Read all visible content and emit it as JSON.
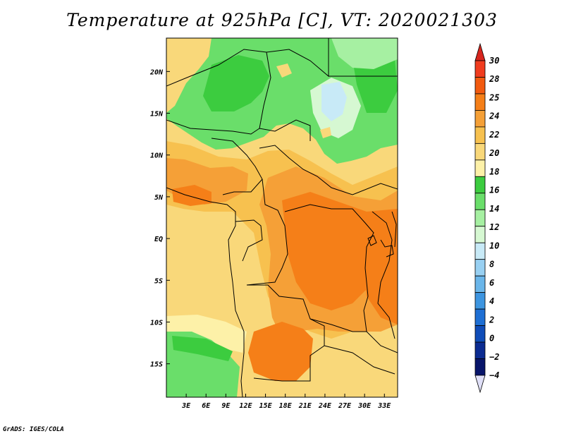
{
  "title": "Temperature at 925hPa [C], VT: 2020021303",
  "credit": "GrADS: IGES/COLA",
  "chart_data": {
    "type": "heatmap",
    "variable": "Temperature at 925hPa",
    "units": "C",
    "valid_time": "2020021303",
    "lon_range": [
      0,
      35
    ],
    "lat_range": [
      -19,
      24
    ],
    "x_ticks": [
      {
        "value": 3,
        "label": "3E"
      },
      {
        "value": 6,
        "label": "6E"
      },
      {
        "value": 9,
        "label": "9E"
      },
      {
        "value": 12,
        "label": "12E"
      },
      {
        "value": 15,
        "label": "15E"
      },
      {
        "value": 18,
        "label": "18E"
      },
      {
        "value": 21,
        "label": "21E"
      },
      {
        "value": 24,
        "label": "24E"
      },
      {
        "value": 27,
        "label": "27E"
      },
      {
        "value": 30,
        "label": "30E"
      },
      {
        "value": 33,
        "label": "33E"
      }
    ],
    "y_ticks": [
      {
        "value": 20,
        "label": "20N"
      },
      {
        "value": 15,
        "label": "15N"
      },
      {
        "value": 10,
        "label": "10N"
      },
      {
        "value": 5,
        "label": "5N"
      },
      {
        "value": 0,
        "label": "EQ"
      },
      {
        "value": -5,
        "label": "5S"
      },
      {
        "value": -10,
        "label": "10S"
      },
      {
        "value": -15,
        "label": "15S"
      }
    ],
    "colorbar": {
      "labels": [
        "30",
        "28",
        "25",
        "24",
        "22",
        "20",
        "18",
        "16",
        "14",
        "12",
        "10",
        "8",
        "6",
        "4",
        "2",
        "0",
        "−2",
        "−4"
      ],
      "colors": [
        "#f03c1e",
        "#f25a0f",
        "#f57f18",
        "#f5a037",
        "#f7c14f",
        "#f9d87a",
        "#fdf1a8",
        "#3ccc3f",
        "#6ade6a",
        "#a6f0a2",
        "#d6f8d2",
        "#c8eaf7",
        "#98d0f2",
        "#6ab6ea",
        "#3d95e0",
        "#1e6fd4",
        "#0f4cb8",
        "#0b2b91",
        "#08156a"
      ],
      "top_tip_color": "#d7261e",
      "bottom_tip_color": "#e0e0f8"
    }
  }
}
